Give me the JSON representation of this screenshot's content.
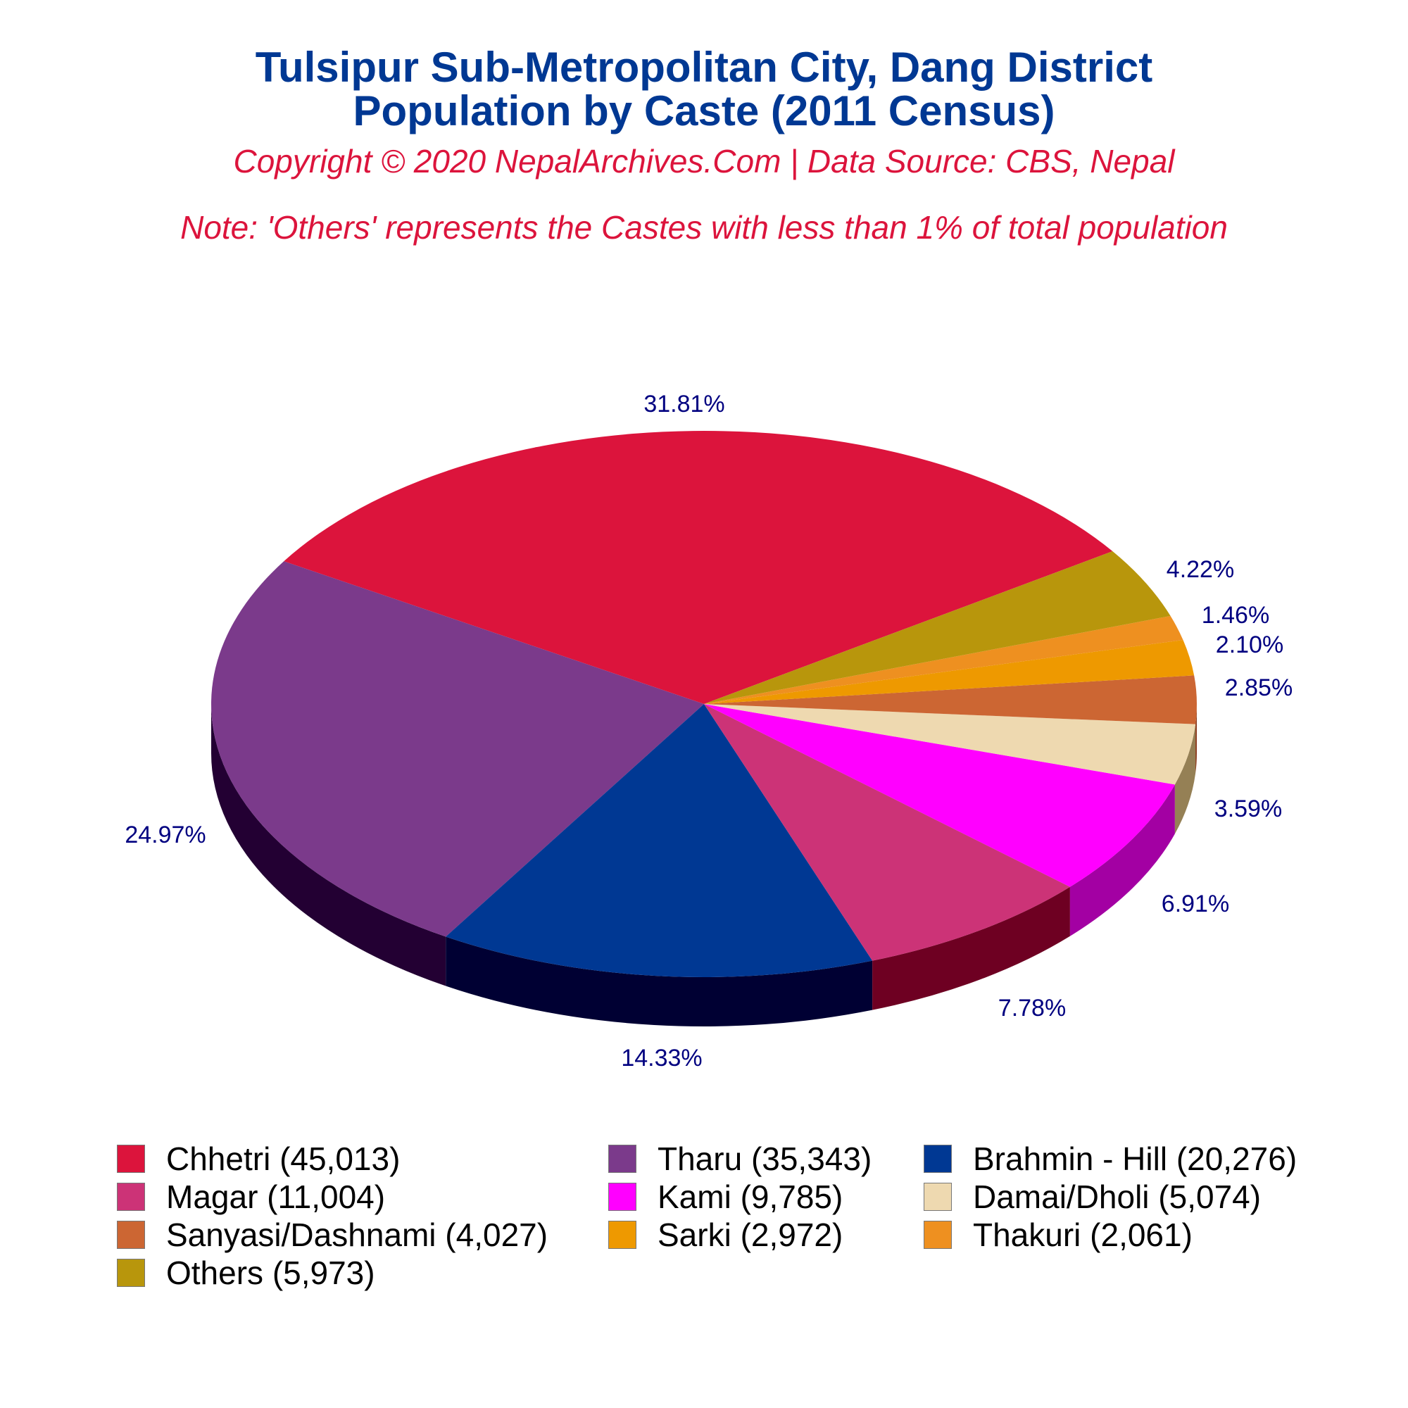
{
  "header": {
    "title_line1": "Tulsipur Sub-Metropolitan City, Dang District",
    "title_line2": "Population by Caste (2011 Census)",
    "copyright": "Copyright © 2020 NepalArchives.Com | Data Source: CBS, Nepal",
    "note": "Note: 'Others' represents the Castes with less than 1% of total population"
  },
  "chart_data": {
    "type": "pie",
    "title": "Tulsipur Sub-Metropolitan City, Dang District Population by Caste (2011 Census)",
    "subtitle": "Copyright © 2020 NepalArchives.Com | Data Source: CBS, Nepal",
    "annotation": "Note: 'Others' represents the Castes with less than 1% of total population",
    "legend_position": "bottom",
    "style": "3d",
    "categories": [
      "Chhetri",
      "Tharu",
      "Brahmin - Hill",
      "Magar",
      "Kami",
      "Damai/Dholi",
      "Sanyasi/Dashnami",
      "Sarki",
      "Thakuri",
      "Others"
    ],
    "values": [
      45013,
      35343,
      20276,
      11004,
      9785,
      5074,
      4027,
      2972,
      2061,
      5973
    ],
    "percent_labels": [
      "31.81%",
      "24.97%",
      "14.33%",
      "7.78%",
      "6.91%",
      "3.59%",
      "2.85%",
      "2.10%",
      "1.46%",
      "4.22%"
    ],
    "colors": [
      "#DC143C",
      "#7B3A8B",
      "#003893",
      "#CC3377",
      "#FF00FF",
      "#EED9B0",
      "#CC6633",
      "#EE9900",
      "#EE9020",
      "#B8960C"
    ],
    "side_colors": [
      "#6E0A1E",
      "#230033",
      "#000033",
      "#6E0022",
      "#A300A3",
      "#958055",
      "#8A3A1A",
      "#996000",
      "#A05A10",
      "#6E5A06"
    ],
    "label_color": "#000080"
  },
  "legend": {
    "items": [
      {
        "label": "Chhetri (45,013)",
        "color": "#DC143C"
      },
      {
        "label": "Tharu (35,343)",
        "color": "#7B3A8B"
      },
      {
        "label": "Brahmin - Hill (20,276)",
        "color": "#003893"
      },
      {
        "label": "Magar (11,004)",
        "color": "#CC3377"
      },
      {
        "label": "Kami (9,785)",
        "color": "#FF00FF"
      },
      {
        "label": "Damai/Dholi (5,074)",
        "color": "#EED9B0"
      },
      {
        "label": "Sanyasi/Dashnami (4,027)",
        "color": "#CC6633"
      },
      {
        "label": "Sarki (2,972)",
        "color": "#EE9900"
      },
      {
        "label": "Thakuri (2,061)",
        "color": "#EE9020"
      },
      {
        "label": "Others (5,973)",
        "color": "#B8960C"
      }
    ]
  }
}
